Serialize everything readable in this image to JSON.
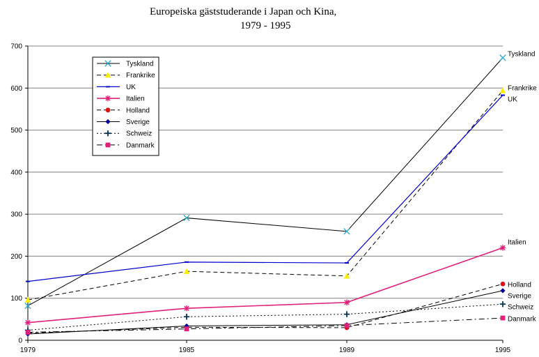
{
  "chart_data": {
    "type": "line",
    "title_line1": "Europeiska gäststuderande i Japan och Kina,",
    "title_line2": "1979 - 1995",
    "x": [
      "1979",
      "1985",
      "1989",
      "1995"
    ],
    "ylim": [
      0,
      700
    ],
    "yticks": [
      "0",
      "100",
      "200",
      "300",
      "400",
      "500",
      "600",
      "700"
    ],
    "grid": true,
    "legend_position": "top-left",
    "series": [
      {
        "name": "Tyskland",
        "values": [
          82,
          291,
          259,
          672
        ],
        "color": "#000000",
        "dash": "",
        "marker": "x-cross",
        "marker_color": "#33aacc",
        "line_width": 1
      },
      {
        "name": "Frankrike",
        "values": [
          96,
          164,
          153,
          594
        ],
        "color": "#000000",
        "dash": "6,4",
        "marker": "triangle",
        "marker_color": "#ffee00",
        "line_width": 1
      },
      {
        "name": "UK",
        "values": [
          140,
          186,
          184,
          583
        ],
        "color": "#0000cc",
        "dash": "",
        "marker": "dash",
        "marker_color": "#0000cc",
        "line_width": 1.2
      },
      {
        "name": "Italien",
        "values": [
          42,
          76,
          90,
          220
        ],
        "color": "#e0207a",
        "dash": "",
        "marker": "asterisk",
        "marker_color": "#e0207a",
        "line_width": 1.6
      },
      {
        "name": "Holland",
        "values": [
          17,
          31,
          30,
          134
        ],
        "color": "#000000",
        "dash": "6,4",
        "marker": "circle",
        "marker_color": "#dd1111",
        "line_width": 1
      },
      {
        "name": "Sverige",
        "values": [
          15,
          34,
          37,
          118
        ],
        "color": "#000000",
        "dash": "",
        "marker": "diamond",
        "marker_color": "#000099",
        "line_width": 1
      },
      {
        "name": "Schweiz",
        "values": [
          24,
          56,
          62,
          86
        ],
        "color": "#000000",
        "dash": "2,3",
        "marker": "plus",
        "marker_color": "#003355",
        "line_width": 1
      },
      {
        "name": "Danmark",
        "values": [
          19,
          27,
          35,
          53
        ],
        "color": "#000000",
        "dash": "8,4,2,4",
        "marker": "square",
        "marker_color": "#e0207a",
        "line_width": 1
      }
    ],
    "end_labels": [
      "Tyskland",
      "Frankrike",
      "UK",
      "Italien",
      "Holland",
      "Sverige",
      "Schweiz",
      "Danmark"
    ]
  }
}
